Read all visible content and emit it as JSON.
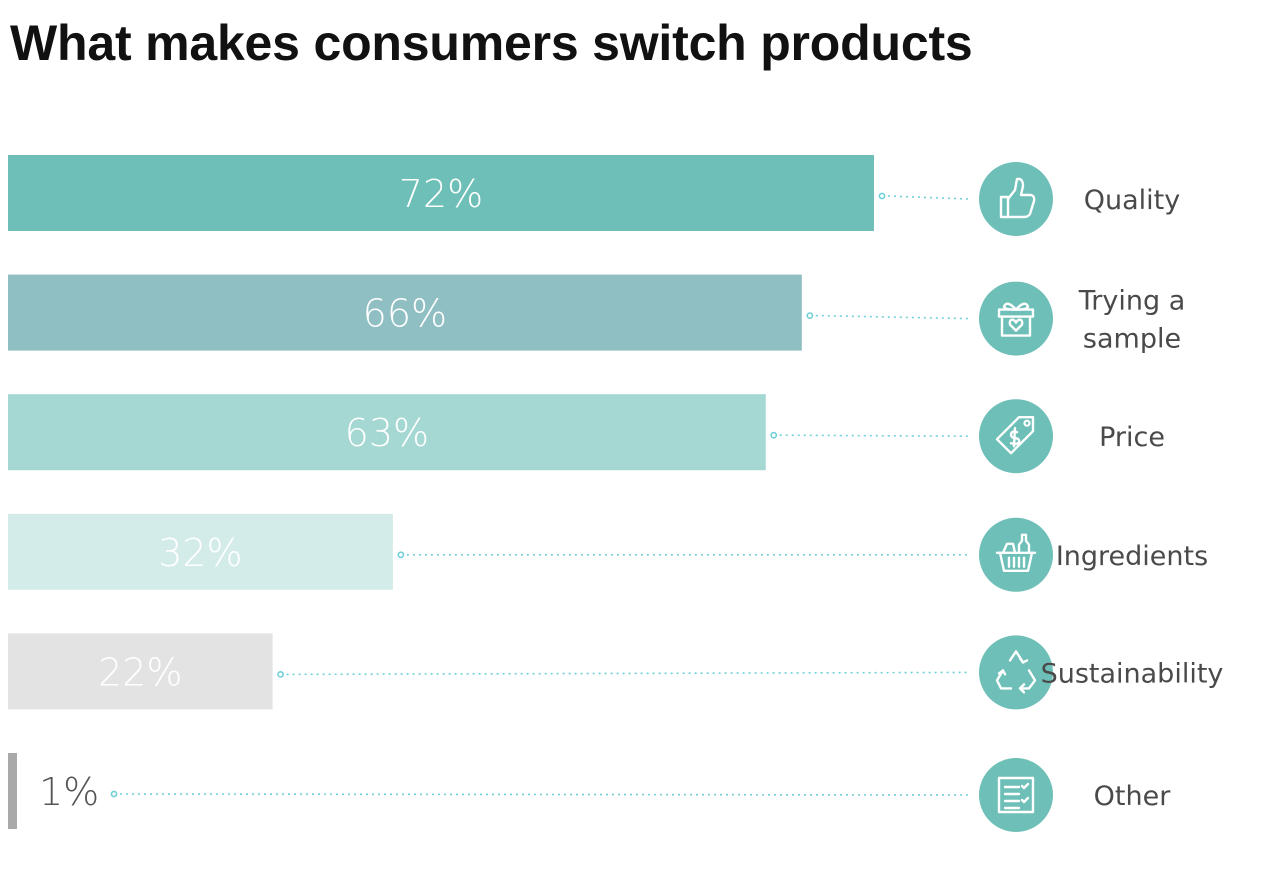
{
  "title": "What makes consumers switch products",
  "chart_data": {
    "type": "bar",
    "orientation": "horizontal",
    "title": "What makes consumers switch products",
    "xlim": [
      0,
      72
    ],
    "grid": false,
    "legend": "none",
    "categories": [
      {
        "label_lines": [
          "Quality"
        ],
        "value": 72,
        "value_label": "72%",
        "icon": "thumbs-up-icon",
        "color": "#6dbfb7",
        "label_color": "#ffffff"
      },
      {
        "label_lines": [
          "Trying a",
          "sample"
        ],
        "value": 66,
        "value_label": "66%",
        "icon": "gift-box-icon",
        "color": "#8fbfc2",
        "label_color": "#ffffff"
      },
      {
        "label_lines": [
          "Price"
        ],
        "value": 63,
        "value_label": "63%",
        "icon": "price-tag-icon",
        "color": "#a5d7d3",
        "label_color": "#ffffff"
      },
      {
        "label_lines": [
          "Ingredients"
        ],
        "value": 32,
        "value_label": "32%",
        "icon": "shopping-basket-icon",
        "color": "#d3ecea",
        "label_color": "#ffffff"
      },
      {
        "label_lines": [
          "Sustainability"
        ],
        "value": 22,
        "value_label": "22%",
        "icon": "recycle-icon",
        "color": "#e3e3e3",
        "label_color": "#ffffff"
      },
      {
        "label_lines": [
          "Other"
        ],
        "value": 1,
        "value_label": "1%",
        "icon": "checklist-icon",
        "color": "#a9a9a9",
        "label_color": "#555555"
      }
    ],
    "icon_circle_color": "#6dbfb7",
    "connector_color": "#6fd0d8"
  }
}
